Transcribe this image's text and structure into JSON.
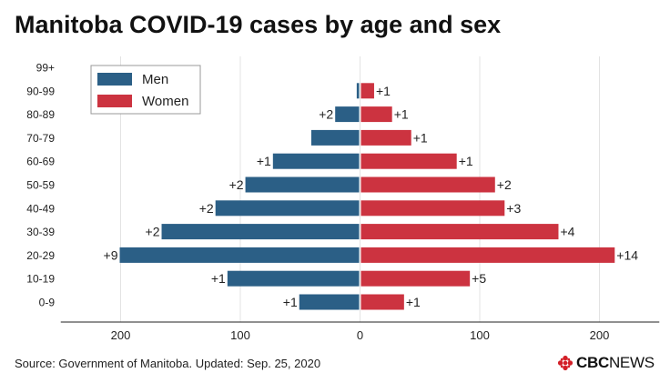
{
  "title": "Manitoba COVID-19 cases by age and sex",
  "source": "Source: Government of Manitoba. Updated: Sep. 25, 2020",
  "logo": {
    "cbc": "CBC",
    "news": "NEWS"
  },
  "chart_data": {
    "type": "bar",
    "orientation": "horizontal-diverging",
    "title": "Manitoba COVID-19 cases by age and sex",
    "categories": [
      "0-9",
      "10-19",
      "20-29",
      "30-39",
      "40-49",
      "50-59",
      "60-69",
      "70-79",
      "80-89",
      "90-99",
      "99+"
    ],
    "series": [
      {
        "name": "Men",
        "color": "#2b5f86",
        "values": [
          50,
          110,
          200,
          165,
          120,
          95,
          72,
          40,
          20,
          2,
          0
        ],
        "changes": [
          "+1",
          "+1",
          "+9",
          "+2",
          "+2",
          "+2",
          "+1",
          "",
          "+2",
          "",
          ""
        ]
      },
      {
        "name": "Women",
        "color": "#cc3340",
        "values": [
          36,
          91,
          212,
          165,
          120,
          112,
          80,
          42,
          26,
          11,
          0
        ],
        "changes": [
          "+1",
          "+5",
          "+14",
          "+4",
          "+3",
          "+2",
          "+1",
          "+1",
          "+1",
          "+1",
          ""
        ]
      }
    ],
    "xlim": [
      -250,
      250
    ],
    "xticks": [
      -200,
      -100,
      0,
      100,
      200
    ],
    "xtick_labels": [
      "200",
      "100",
      "0",
      "100",
      "200"
    ],
    "grid": true,
    "legend_position": "top-left"
  }
}
